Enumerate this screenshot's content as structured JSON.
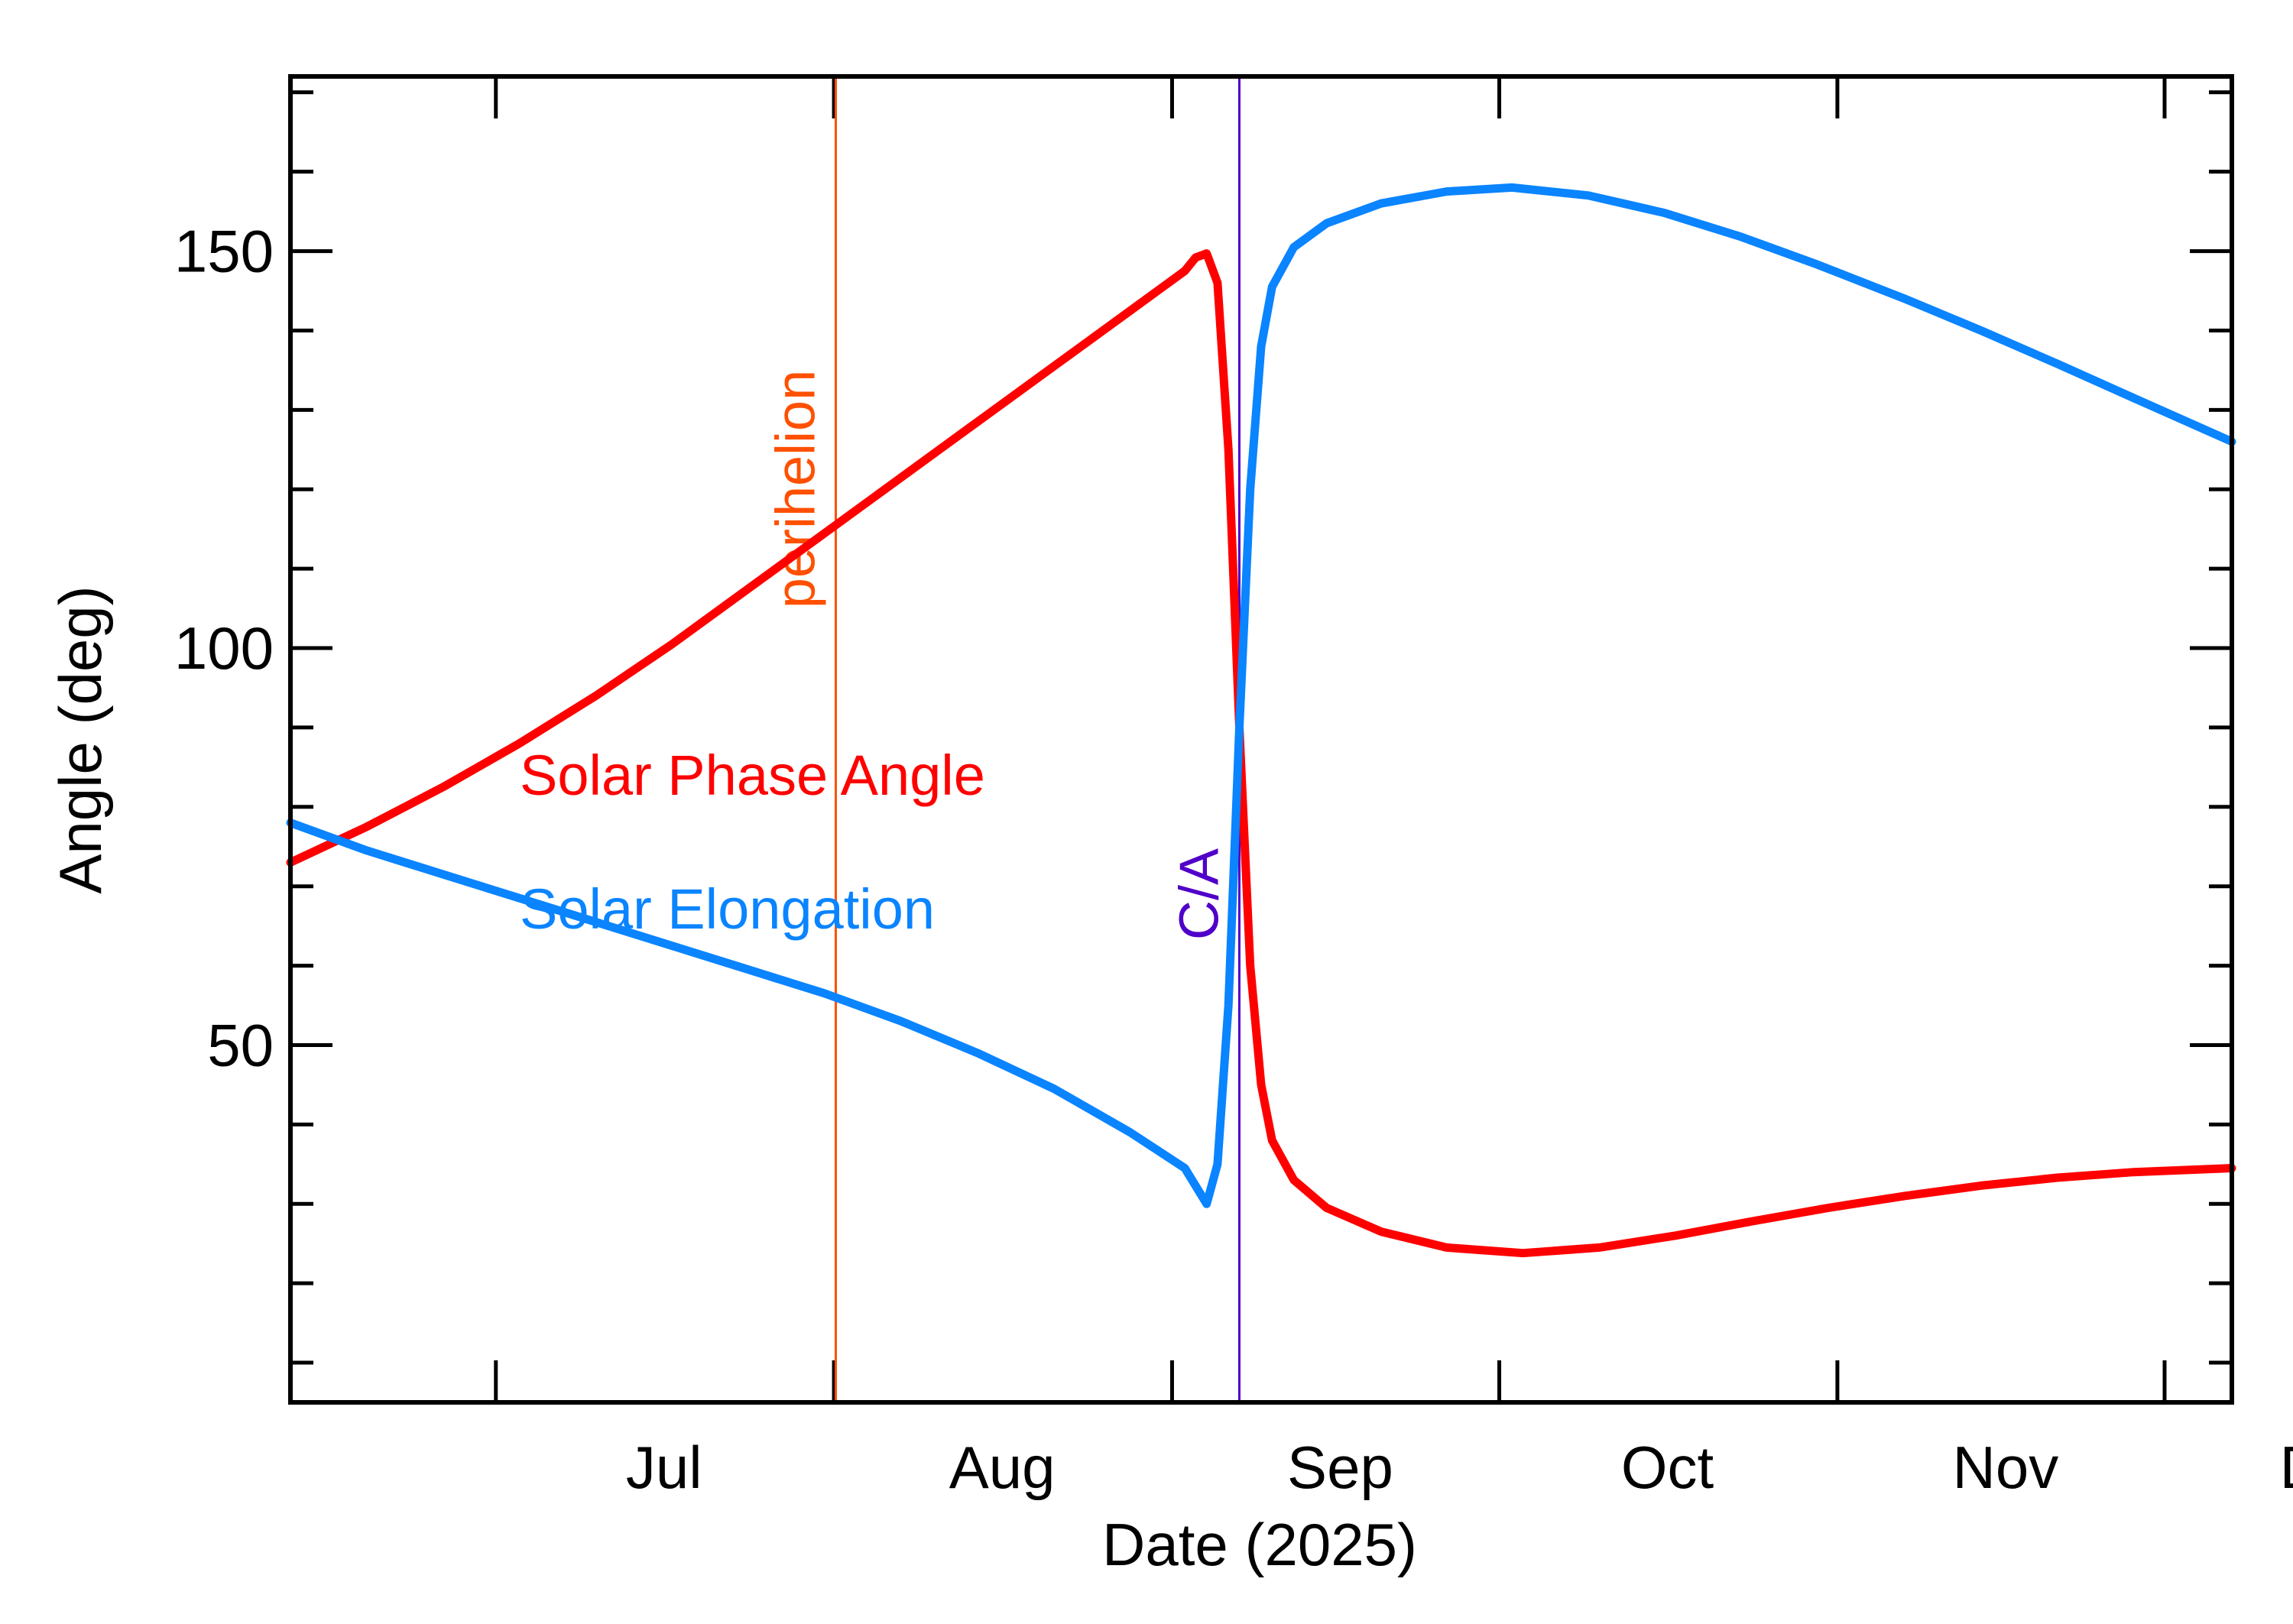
{
  "chart_data": {
    "type": "line",
    "xlabel": "Date (2025)",
    "ylabel": "Angle (deg)",
    "x_axis": {
      "unit": "date",
      "range": [
        "2025-06-06",
        "2025-12-01"
      ],
      "tick_labels": [
        {
          "label": "Jul",
          "date": "2025-07-01"
        },
        {
          "label": "Aug",
          "date": "2025-08-01"
        },
        {
          "label": "Sep",
          "date": "2025-09-01"
        },
        {
          "label": "Oct",
          "date": "2025-10-01"
        },
        {
          "label": "Nov",
          "date": "2025-11-01"
        },
        {
          "label": "Dec",
          "date": "2025-12-01"
        }
      ]
    },
    "y_axis": {
      "range": [
        5,
        172
      ],
      "major_ticks": [
        50,
        100,
        150
      ],
      "tick_labels": [
        "50",
        "100",
        "150"
      ],
      "minor_step": 10
    },
    "grid": false,
    "series": [
      {
        "name": "Solar Phase Angle",
        "color": "#ff0000",
        "points": [
          [
            "2025-06-06",
            73.0
          ],
          [
            "2025-06-13",
            77.5
          ],
          [
            "2025-06-20",
            82.5
          ],
          [
            "2025-06-27",
            88.0
          ],
          [
            "2025-07-04",
            94.0
          ],
          [
            "2025-07-11",
            100.5
          ],
          [
            "2025-07-18",
            107.5
          ],
          [
            "2025-07-25",
            114.5
          ],
          [
            "2025-08-01",
            121.5
          ],
          [
            "2025-08-08",
            128.5
          ],
          [
            "2025-08-15",
            135.5
          ],
          [
            "2025-08-22",
            142.5
          ],
          [
            "2025-08-27",
            147.5
          ],
          [
            "2025-08-28",
            149.2
          ],
          [
            "2025-08-29",
            149.7
          ],
          [
            "2025-08-30",
            146.0
          ],
          [
            "2025-08-31",
            125.0
          ],
          [
            "2025-09-01",
            90.0
          ],
          [
            "2025-09-02",
            60.0
          ],
          [
            "2025-09-03",
            45.0
          ],
          [
            "2025-09-04",
            38.0
          ],
          [
            "2025-09-06",
            33.0
          ],
          [
            "2025-09-09",
            29.5
          ],
          [
            "2025-09-14",
            26.5
          ],
          [
            "2025-09-20",
            24.5
          ],
          [
            "2025-09-27",
            23.8
          ],
          [
            "2025-10-04",
            24.5
          ],
          [
            "2025-10-11",
            26.0
          ],
          [
            "2025-10-18",
            27.8
          ],
          [
            "2025-10-25",
            29.5
          ],
          [
            "2025-11-01",
            31.0
          ],
          [
            "2025-11-08",
            32.3
          ],
          [
            "2025-11-15",
            33.3
          ],
          [
            "2025-11-22",
            34.0
          ],
          [
            "2025-12-01",
            34.5
          ]
        ]
      },
      {
        "name": "Solar Elongation",
        "color": "#0a84ff",
        "points": [
          [
            "2025-06-06",
            78.0
          ],
          [
            "2025-06-13",
            74.5
          ],
          [
            "2025-06-20",
            71.5
          ],
          [
            "2025-06-27",
            68.5
          ],
          [
            "2025-07-04",
            65.5
          ],
          [
            "2025-07-11",
            62.5
          ],
          [
            "2025-07-18",
            59.5
          ],
          [
            "2025-07-25",
            56.5
          ],
          [
            "2025-08-01",
            53.0
          ],
          [
            "2025-08-08",
            49.0
          ],
          [
            "2025-08-15",
            44.5
          ],
          [
            "2025-08-22",
            39.0
          ],
          [
            "2025-08-27",
            34.5
          ],
          [
            "2025-08-29",
            30.0
          ],
          [
            "2025-08-30",
            35.0
          ],
          [
            "2025-08-31",
            55.0
          ],
          [
            "2025-09-01",
            90.0
          ],
          [
            "2025-09-02",
            120.0
          ],
          [
            "2025-09-03",
            138.0
          ],
          [
            "2025-09-04",
            145.5
          ],
          [
            "2025-09-06",
            150.5
          ],
          [
            "2025-09-09",
            153.5
          ],
          [
            "2025-09-14",
            156.0
          ],
          [
            "2025-09-20",
            157.5
          ],
          [
            "2025-09-26",
            158.0
          ],
          [
            "2025-10-03",
            157.0
          ],
          [
            "2025-10-10",
            154.8
          ],
          [
            "2025-10-17",
            151.8
          ],
          [
            "2025-10-24",
            148.3
          ],
          [
            "2025-11-01",
            144.0
          ],
          [
            "2025-11-08",
            140.0
          ],
          [
            "2025-11-15",
            135.8
          ],
          [
            "2025-11-22",
            131.5
          ],
          [
            "2025-12-01",
            126.0
          ]
        ]
      }
    ],
    "markers": [
      {
        "label": "perihelion",
        "date": "2025-07-26",
        "color": "#ff5000"
      },
      {
        "label": "C/A",
        "date": "2025-09-01",
        "color": "#5000c8"
      }
    ]
  }
}
